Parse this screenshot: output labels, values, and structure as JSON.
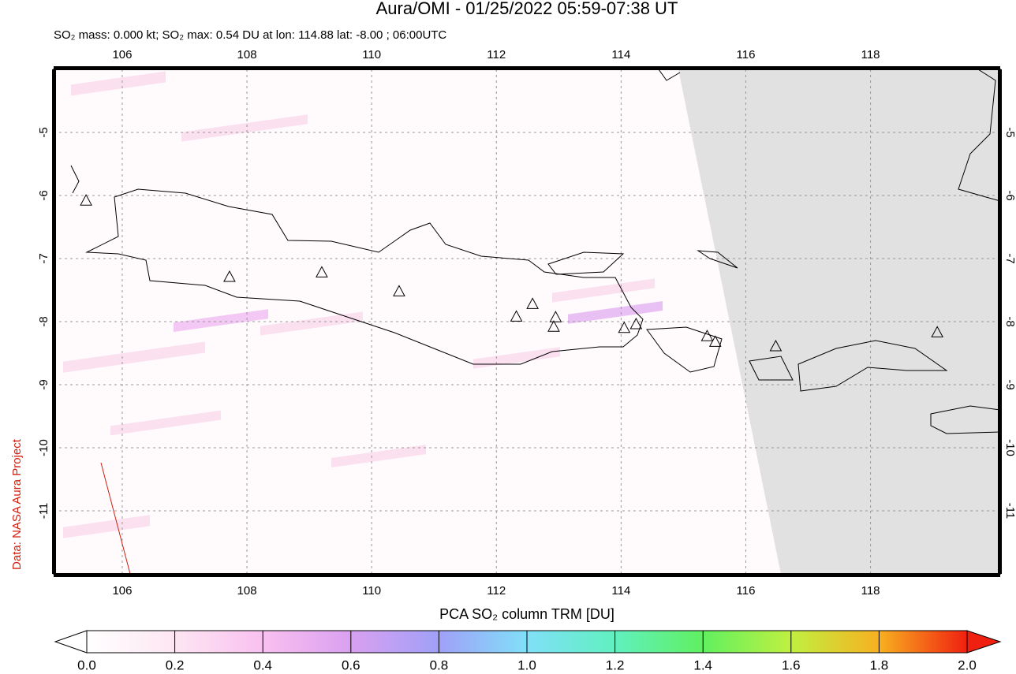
{
  "chart_data": {
    "type": "map",
    "title": "Aura/OMI - 01/25/2022 05:59-07:38 UT",
    "subtitle": "SO₂ mass: 0.000 kt; SO₂ max: 0.54 DU at lon: 114.88 lat: -8.00 ; 06:00UTC",
    "credit": "Data: NASA Aura Project",
    "xlim": [
      104.9,
      120.08
    ],
    "ylim": [
      -12,
      -4
    ],
    "xticks": [
      106,
      108,
      110,
      112,
      114,
      116,
      118
    ],
    "yticks": [
      -5,
      -6,
      -7,
      -8,
      -9,
      -10,
      -11
    ],
    "grid": true,
    "volcanoes": {
      "lon": [
        105.42,
        107.72,
        109.2,
        110.44,
        112.32,
        112.58,
        112.95,
        112.92,
        114.05,
        114.24,
        115.38,
        115.51,
        116.48,
        119.07
      ],
      "lat": [
        -6.09,
        -7.3,
        -7.23,
        -7.53,
        -7.93,
        -7.73,
        -7.94,
        -8.09,
        -8.11,
        -8.05,
        -8.24,
        -8.33,
        -8.4,
        -8.18
      ]
    },
    "colorbar": {
      "label": "PCA SO₂ column TRM [DU]",
      "lim": [
        0,
        2
      ],
      "ticks": [
        {
          "value": 0,
          "label": "0.0"
        },
        0.2,
        0.4,
        0.6,
        0.8,
        {
          "value": 1,
          "label": "1.0"
        },
        1.2,
        1.4,
        1.6,
        1.8,
        {
          "value": 2,
          "label": "2.0"
        }
      ]
    }
  }
}
